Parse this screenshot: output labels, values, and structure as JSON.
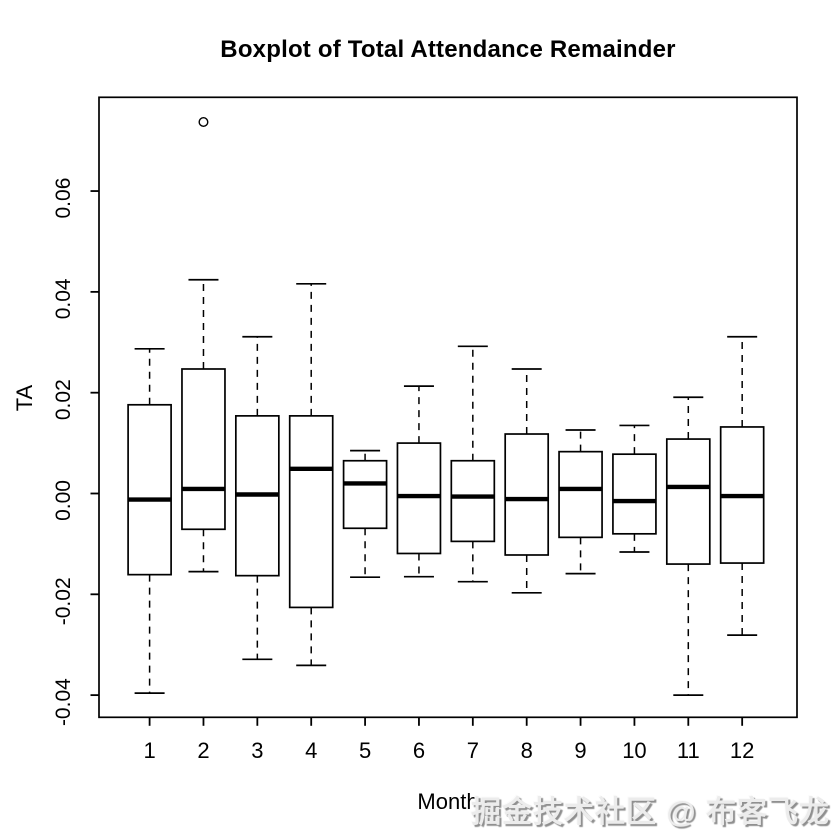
{
  "title": "Boxplot of Total Attendance Remainder",
  "watermark": "掘金技术社区 @ 布客飞龙",
  "colors": {
    "foreground": "#000000",
    "background": "#ffffff",
    "watermark_gray": "#8f8f8f"
  },
  "chart_data": {
    "type": "boxplot",
    "title": "Boxplot of Total Attendance Remainder",
    "xlabel": "Month",
    "ylabel": "TA",
    "grid": false,
    "legend": "none",
    "categories": [
      "1",
      "2",
      "3",
      "4",
      "5",
      "6",
      "7",
      "8",
      "9",
      "10",
      "11",
      "12"
    ],
    "y_ticks": [
      0.06,
      0.04,
      0.02,
      0.0,
      -0.02,
      -0.04
    ],
    "y_tick_labels": [
      "0.06",
      "0.04",
      "0.02",
      "0.00",
      "-0.02",
      "-0.04"
    ],
    "ylim": [
      -0.0444,
      0.0786
    ],
    "series": [
      {
        "month": "1",
        "whisker_low": -0.0396,
        "q1": -0.0161,
        "median": -0.0012,
        "q3": 0.0176,
        "whisker_high": 0.0287,
        "outliers": []
      },
      {
        "month": "2",
        "whisker_low": -0.0155,
        "q1": -0.0071,
        "median": 0.0009,
        "q3": 0.0247,
        "whisker_high": 0.0424,
        "outliers": [
          0.0737
        ]
      },
      {
        "month": "3",
        "whisker_low": -0.0329,
        "q1": -0.0163,
        "median": -0.0002,
        "q3": 0.0154,
        "whisker_high": 0.0311,
        "outliers": []
      },
      {
        "month": "4",
        "whisker_low": -0.0341,
        "q1": -0.0226,
        "median": 0.0049,
        "q3": 0.0154,
        "whisker_high": 0.0416,
        "outliers": []
      },
      {
        "month": "5",
        "whisker_low": -0.0166,
        "q1": -0.0069,
        "median": 0.002,
        "q3": 0.0065,
        "whisker_high": 0.0085,
        "outliers": []
      },
      {
        "month": "6",
        "whisker_low": -0.0165,
        "q1": -0.0119,
        "median": -0.0005,
        "q3": 0.01,
        "whisker_high": 0.0213,
        "outliers": []
      },
      {
        "month": "7",
        "whisker_low": -0.0175,
        "q1": -0.0095,
        "median": -0.0006,
        "q3": 0.0065,
        "whisker_high": 0.0292,
        "outliers": []
      },
      {
        "month": "8",
        "whisker_low": -0.0197,
        "q1": -0.0122,
        "median": -0.0011,
        "q3": 0.0118,
        "whisker_high": 0.0247,
        "outliers": []
      },
      {
        "month": "9",
        "whisker_low": -0.0159,
        "q1": -0.0087,
        "median": 0.0009,
        "q3": 0.0083,
        "whisker_high": 0.0126,
        "outliers": []
      },
      {
        "month": "10",
        "whisker_low": -0.0116,
        "q1": -0.008,
        "median": -0.0015,
        "q3": 0.0078,
        "whisker_high": 0.0135,
        "outliers": []
      },
      {
        "month": "11",
        "whisker_low": -0.04,
        "q1": -0.014,
        "median": 0.0013,
        "q3": 0.0108,
        "whisker_high": 0.0191,
        "outliers": []
      },
      {
        "month": "12",
        "whisker_low": -0.0281,
        "q1": -0.0138,
        "median": -0.0005,
        "q3": 0.0132,
        "whisker_high": 0.0311,
        "outliers": []
      }
    ]
  }
}
